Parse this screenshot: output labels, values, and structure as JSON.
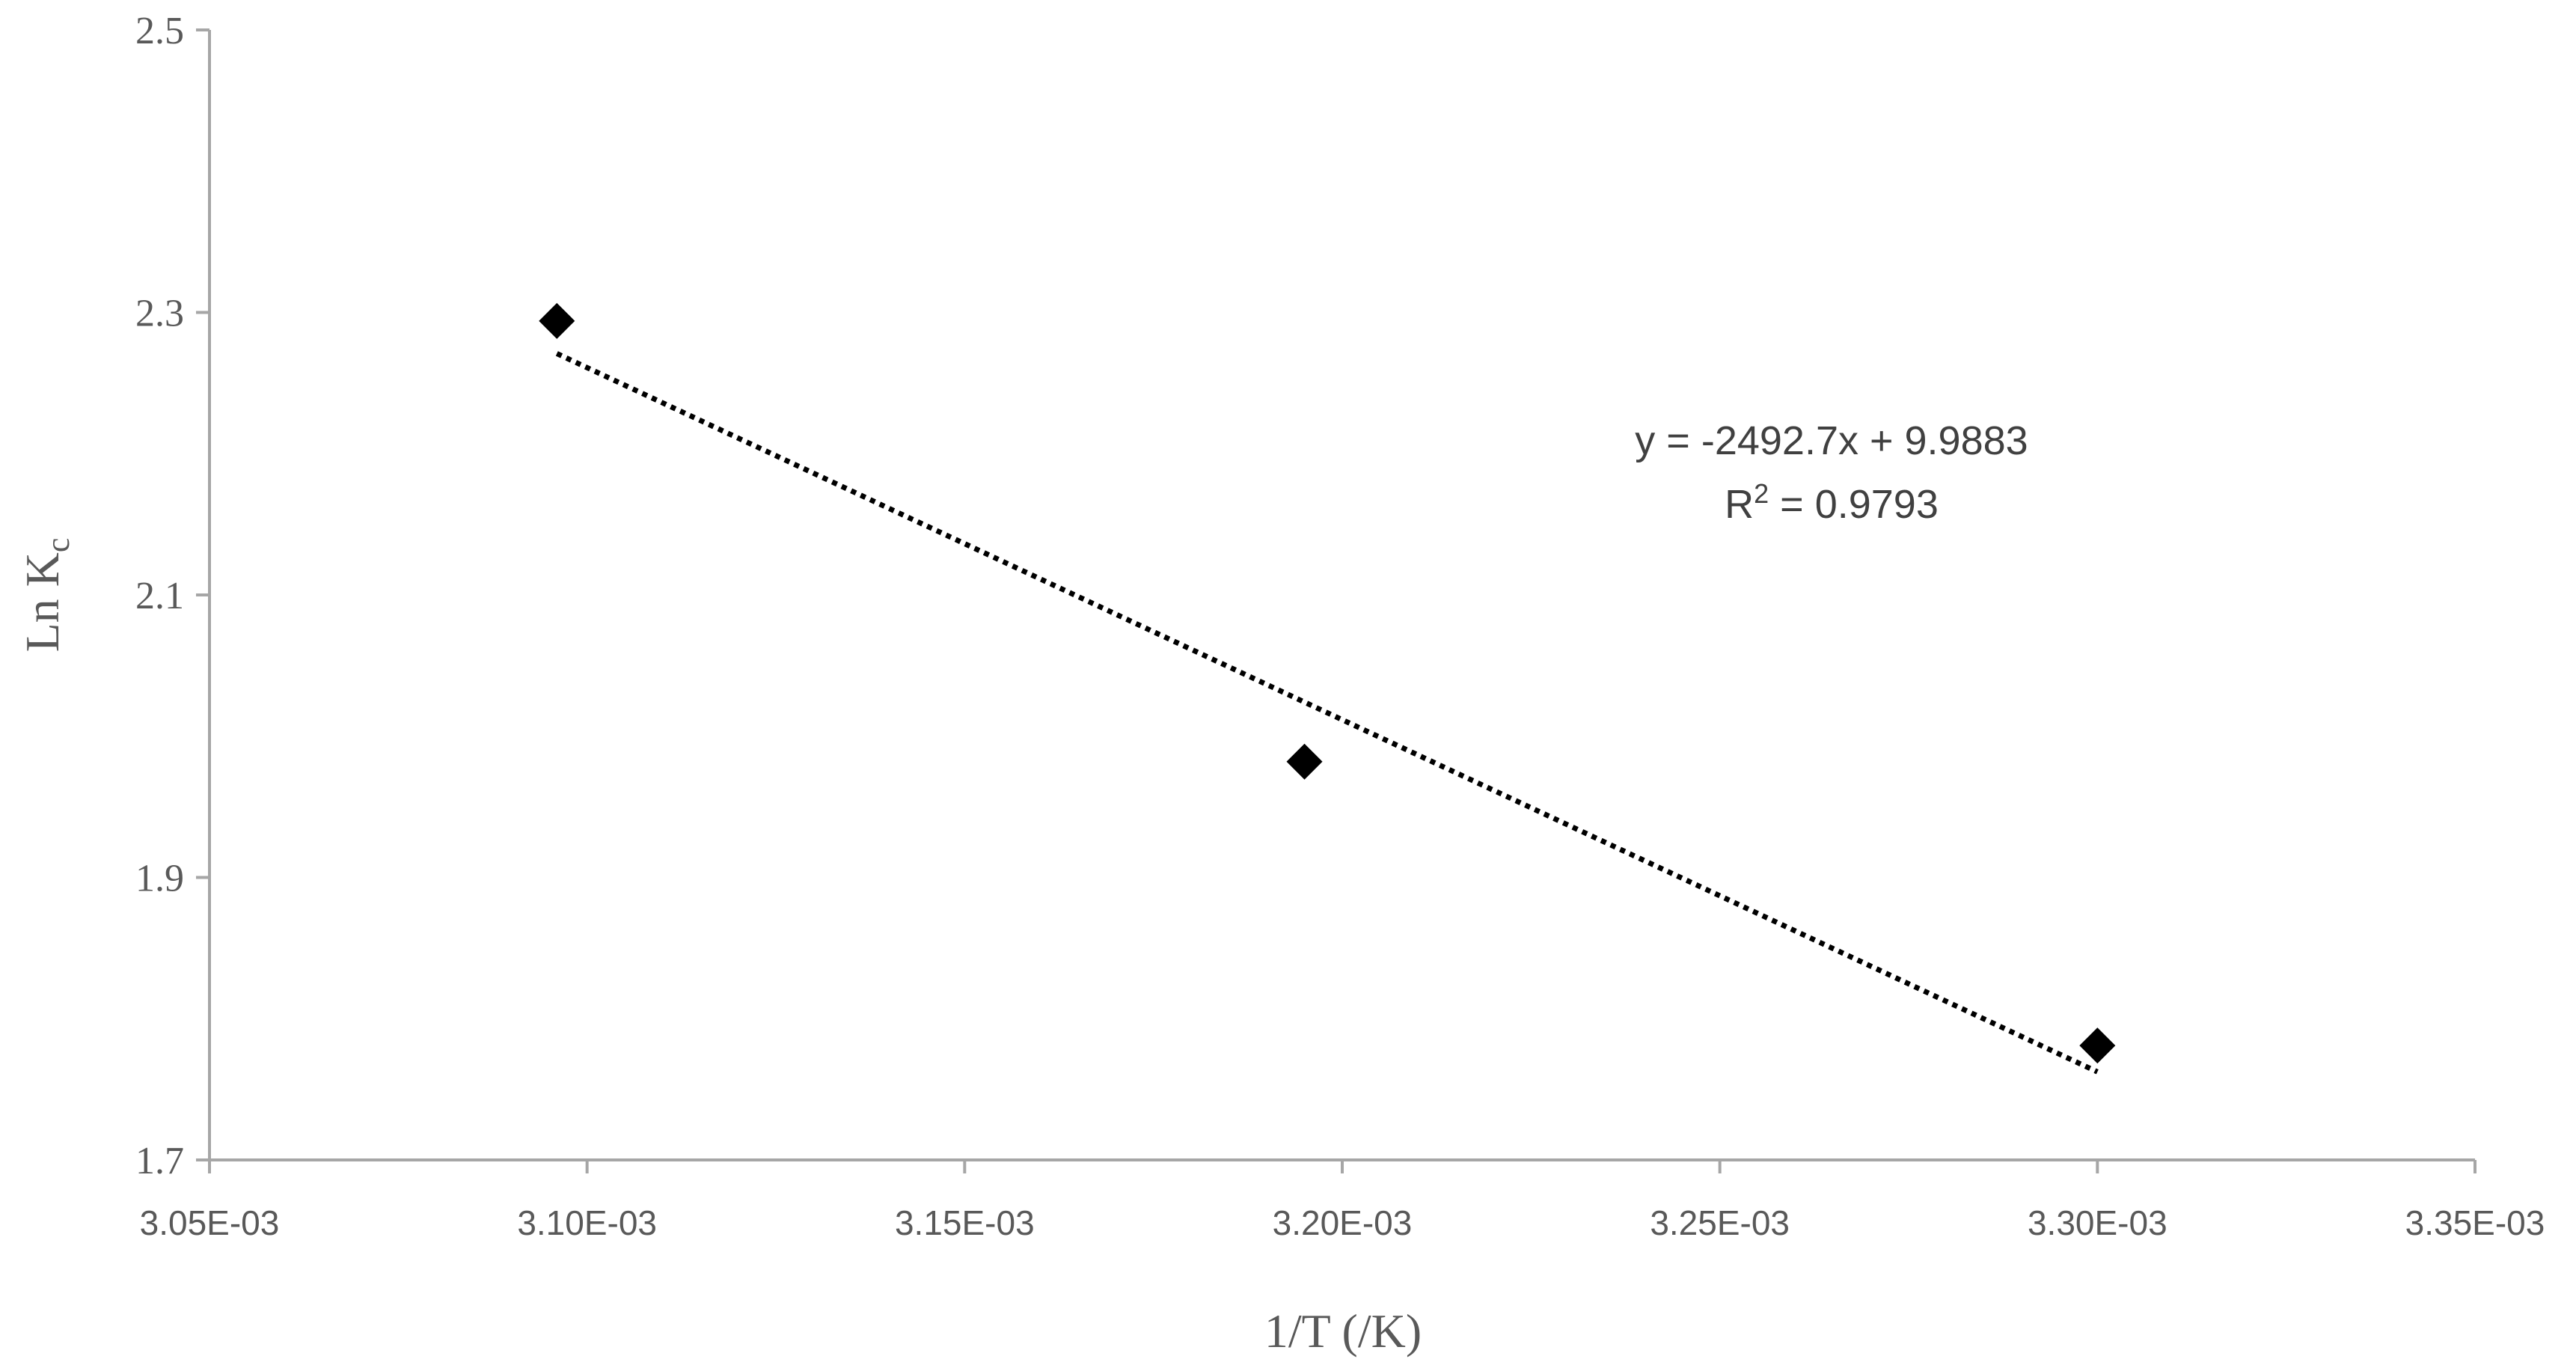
{
  "chart_data": {
    "type": "scatter",
    "title": "",
    "xlabel": "1/T (/K)",
    "ylabel_main": "Ln K",
    "ylabel_sub": "c",
    "xlim": [
      0.00305,
      0.00335
    ],
    "ylim": [
      1.7,
      2.5
    ],
    "x_ticks": [
      {
        "value": 0.00305,
        "label": "3.05E-03"
      },
      {
        "value": 0.0031,
        "label": "3.10E-03"
      },
      {
        "value": 0.00315,
        "label": "3.15E-03"
      },
      {
        "value": 0.0032,
        "label": "3.20E-03"
      },
      {
        "value": 0.00325,
        "label": "3.25E-03"
      },
      {
        "value": 0.0033,
        "label": "3.30E-03"
      },
      {
        "value": 0.00335,
        "label": "3.35E-03"
      }
    ],
    "y_ticks": [
      {
        "value": 1.7,
        "label": "1.7"
      },
      {
        "value": 1.9,
        "label": "1.9"
      },
      {
        "value": 2.1,
        "label": "2.1"
      },
      {
        "value": 2.3,
        "label": "2.3"
      },
      {
        "value": 2.5,
        "label": "2.5"
      }
    ],
    "grid": false,
    "series": [
      {
        "marker": "diamond",
        "color": "#000000",
        "points": [
          {
            "x": 0.003096,
            "y": 2.294
          },
          {
            "x": 0.003195,
            "y": 1.982
          },
          {
            "x": 0.0033,
            "y": 1.781
          }
        ]
      }
    ],
    "trendline": {
      "style": "dotted",
      "color": "#000000",
      "slope": -2492.7,
      "intercept": 9.9883,
      "x_range": [
        0.003096,
        0.0033
      ],
      "equation": "y = -2492.7x + 9.9883",
      "r2_prefix": "R",
      "r2_sup": "2",
      "r2_value": " = 0.9793"
    }
  }
}
